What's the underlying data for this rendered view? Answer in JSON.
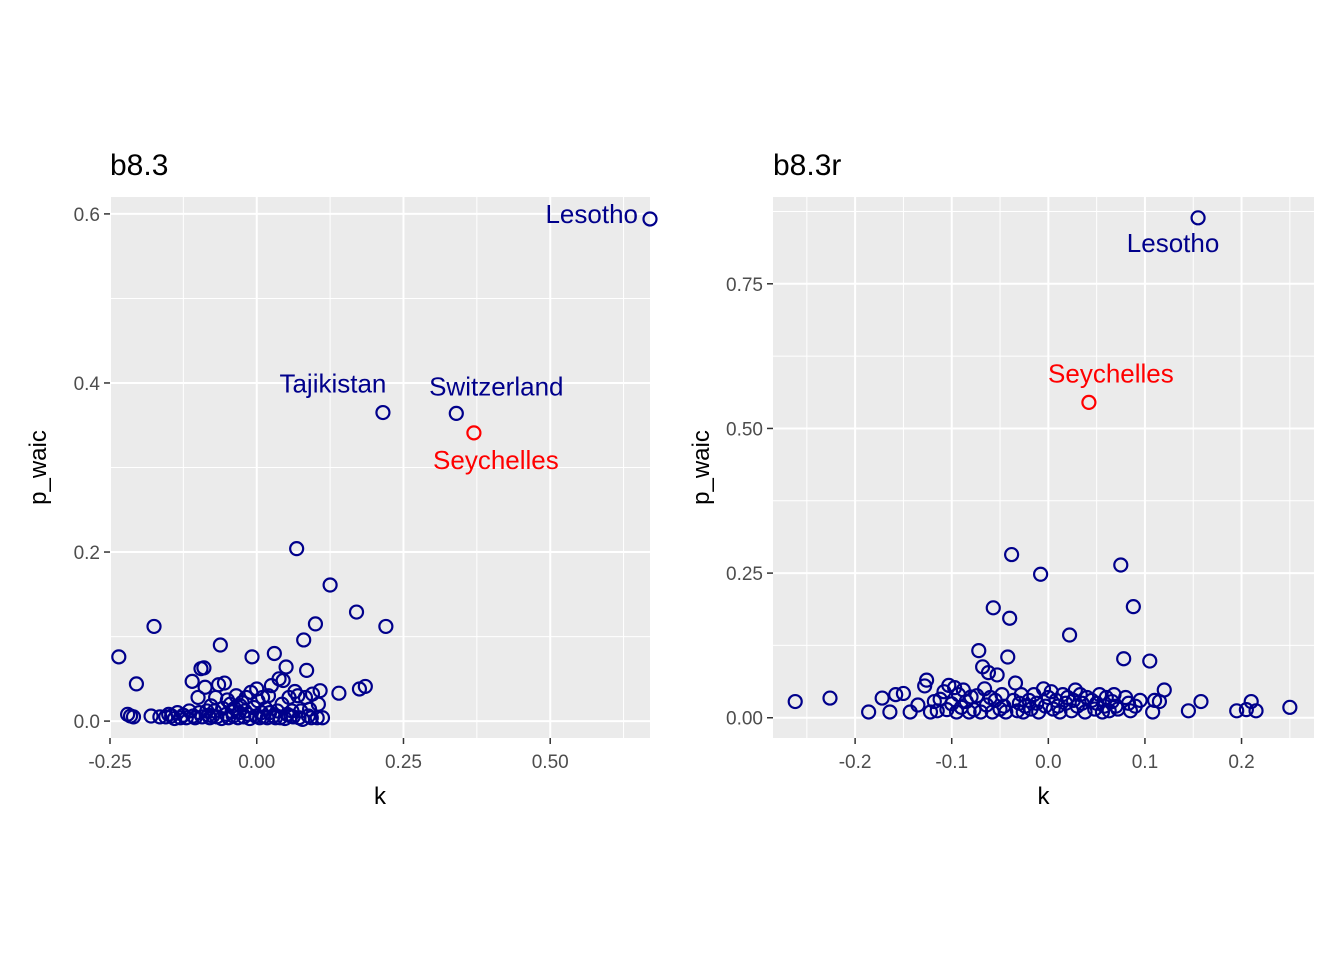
{
  "chart_data": [
    {
      "type": "scatter",
      "title": "b8.3",
      "xlabel": "k",
      "ylabel": "p_waic",
      "xlim": [
        -0.25,
        0.67
      ],
      "ylim": [
        -0.02,
        0.62
      ],
      "xticks": [
        -0.25,
        0.0,
        0.25,
        0.5
      ],
      "xtick_labels": [
        "-0.25",
        "0.00",
        "0.25",
        "0.50"
      ],
      "yticks": [
        0.0,
        0.2,
        0.4,
        0.6
      ],
      "ytick_labels": [
        "0.0",
        "0.2",
        "0.4",
        "0.6"
      ],
      "grid": true,
      "point_color": "#00008B",
      "highlight_color": "#FF0000",
      "points": [
        [
          -0.235,
          0.076
        ],
        [
          -0.22,
          0.008
        ],
        [
          -0.215,
          0.006
        ],
        [
          -0.21,
          0.005
        ],
        [
          -0.205,
          0.044
        ],
        [
          -0.18,
          0.006
        ],
        [
          -0.175,
          0.112
        ],
        [
          -0.165,
          0.005
        ],
        [
          -0.155,
          0.005
        ],
        [
          -0.15,
          0.008
        ],
        [
          -0.145,
          0.006
        ],
        [
          -0.14,
          0.003
        ],
        [
          -0.135,
          0.01
        ],
        [
          -0.13,
          0.004
        ],
        [
          -0.125,
          0.007
        ],
        [
          -0.12,
          0.004
        ],
        [
          -0.115,
          0.012
        ],
        [
          -0.11,
          0.047
        ],
        [
          -0.108,
          0.006
        ],
        [
          -0.105,
          0.004
        ],
        [
          -0.1,
          0.028
        ],
        [
          -0.098,
          0.01
        ],
        [
          -0.095,
          0.062
        ],
        [
          -0.093,
          0.005
        ],
        [
          -0.09,
          0.063
        ],
        [
          -0.088,
          0.04
        ],
        [
          -0.085,
          0.012
        ],
        [
          -0.082,
          0.007
        ],
        [
          -0.08,
          0.004
        ],
        [
          -0.078,
          0.018
        ],
        [
          -0.075,
          0.006
        ],
        [
          -0.072,
          0.012
        ],
        [
          -0.07,
          0.028
        ],
        [
          -0.068,
          0.005
        ],
        [
          -0.065,
          0.043
        ],
        [
          -0.062,
          0.09
        ],
        [
          -0.06,
          0.003
        ],
        [
          -0.058,
          0.015
        ],
        [
          -0.055,
          0.045
        ],
        [
          -0.052,
          0.008
        ],
        [
          -0.05,
          0.025
        ],
        [
          -0.048,
          0.004
        ],
        [
          -0.045,
          0.02
        ],
        [
          -0.042,
          0.011
        ],
        [
          -0.04,
          0.006
        ],
        [
          -0.038,
          0.015
        ],
        [
          -0.035,
          0.03
        ],
        [
          -0.032,
          0.004
        ],
        [
          -0.03,
          0.01
        ],
        [
          -0.028,
          0.018
        ],
        [
          -0.025,
          0.022
        ],
        [
          -0.022,
          0.005
        ],
        [
          -0.02,
          0.012
        ],
        [
          -0.018,
          0.028
        ],
        [
          -0.015,
          0.008
        ],
        [
          -0.012,
          0.003
        ],
        [
          -0.01,
          0.034
        ],
        [
          -0.008,
          0.076
        ],
        [
          -0.005,
          0.016
        ],
        [
          -0.002,
          0.006
        ],
        [
          0.0,
          0.038
        ],
        [
          0.002,
          0.024
        ],
        [
          0.005,
          0.004
        ],
        [
          0.008,
          0.01
        ],
        [
          0.01,
          0.028
        ],
        [
          0.012,
          0.005
        ],
        [
          0.015,
          0.015
        ],
        [
          0.018,
          0.004
        ],
        [
          0.02,
          0.03
        ],
        [
          0.022,
          0.01
        ],
        [
          0.025,
          0.042
        ],
        [
          0.028,
          0.006
        ],
        [
          0.03,
          0.08
        ],
        [
          0.032,
          0.004
        ],
        [
          0.035,
          0.012
        ],
        [
          0.038,
          0.05
        ],
        [
          0.04,
          0.004
        ],
        [
          0.043,
          0.02
        ],
        [
          0.045,
          0.048
        ],
        [
          0.048,
          0.003
        ],
        [
          0.05,
          0.064
        ],
        [
          0.052,
          0.008
        ],
        [
          0.055,
          0.028
        ],
        [
          0.058,
          0.006
        ],
        [
          0.06,
          0.012
        ],
        [
          0.062,
          0.005
        ],
        [
          0.065,
          0.035
        ],
        [
          0.068,
          0.204
        ],
        [
          0.07,
          0.03
        ],
        [
          0.072,
          0.004
        ],
        [
          0.075,
          0.012
        ],
        [
          0.078,
          0.002
        ],
        [
          0.08,
          0.096
        ],
        [
          0.083,
          0.028
        ],
        [
          0.085,
          0.06
        ],
        [
          0.088,
          0.006
        ],
        [
          0.09,
          0.014
        ],
        [
          0.093,
          0.004
        ],
        [
          0.095,
          0.032
        ],
        [
          0.1,
          0.115
        ],
        [
          0.103,
          0.004
        ],
        [
          0.105,
          0.02
        ],
        [
          0.108,
          0.036
        ],
        [
          0.112,
          0.004
        ],
        [
          0.125,
          0.161
        ],
        [
          0.14,
          0.033
        ],
        [
          0.17,
          0.129
        ],
        [
          0.175,
          0.038
        ],
        [
          0.185,
          0.041
        ],
        [
          0.22,
          0.112
        ],
        [
          0.215,
          0.365
        ],
        [
          0.34,
          0.364
        ],
        [
          0.37,
          0.341,
          "h"
        ],
        [
          0.67,
          0.594
        ]
      ],
      "labels": [
        {
          "text": "Lesotho",
          "x": 0.67,
          "y": 0.594,
          "color": "#00008B"
        },
        {
          "text": "Tajikistan",
          "x": 0.215,
          "y": 0.365,
          "color": "#00008B"
        },
        {
          "text": "Switzerland",
          "x": 0.34,
          "y": 0.364,
          "color": "#00008B"
        },
        {
          "text": "Seychelles",
          "x": 0.37,
          "y": 0.341,
          "color": "#FF0000"
        }
      ]
    },
    {
      "type": "scatter",
      "title": "b8.3r",
      "xlabel": "k",
      "ylabel": "p_waic",
      "xlim": [
        -0.285,
        0.275
      ],
      "ylim": [
        -0.035,
        0.9
      ],
      "xticks": [
        -0.2,
        -0.1,
        0.0,
        0.1,
        0.2
      ],
      "xtick_labels": [
        "-0.2",
        "-0.1",
        "0.0",
        "0.1",
        "0.2"
      ],
      "yticks": [
        0.0,
        0.25,
        0.5,
        0.75
      ],
      "ytick_labels": [
        "0.00",
        "0.25",
        "0.50",
        "0.75"
      ],
      "grid": true,
      "point_color": "#00008B",
      "highlight_color": "#FF0000",
      "points": [
        [
          -0.262,
          0.028
        ],
        [
          -0.226,
          0.034
        ],
        [
          -0.186,
          0.01
        ],
        [
          -0.172,
          0.034
        ],
        [
          -0.164,
          0.01
        ],
        [
          -0.158,
          0.04
        ],
        [
          -0.15,
          0.042
        ],
        [
          -0.143,
          0.01
        ],
        [
          -0.135,
          0.022
        ],
        [
          -0.128,
          0.055
        ],
        [
          -0.126,
          0.065
        ],
        [
          -0.122,
          0.01
        ],
        [
          -0.118,
          0.028
        ],
        [
          -0.115,
          0.012
        ],
        [
          -0.112,
          0.032
        ],
        [
          -0.108,
          0.045
        ],
        [
          -0.105,
          0.014
        ],
        [
          -0.103,
          0.056
        ],
        [
          -0.1,
          0.024
        ],
        [
          -0.097,
          0.052
        ],
        [
          -0.095,
          0.01
        ],
        [
          -0.093,
          0.04
        ],
        [
          -0.09,
          0.018
        ],
        [
          -0.088,
          0.048
        ],
        [
          -0.085,
          0.028
        ],
        [
          -0.082,
          0.01
        ],
        [
          -0.08,
          0.036
        ],
        [
          -0.077,
          0.014
        ],
        [
          -0.074,
          0.038
        ],
        [
          -0.072,
          0.116
        ],
        [
          -0.07,
          0.01
        ],
        [
          -0.068,
          0.088
        ],
        [
          -0.066,
          0.05
        ],
        [
          -0.064,
          0.022
        ],
        [
          -0.062,
          0.078
        ],
        [
          -0.06,
          0.035
        ],
        [
          -0.058,
          0.01
        ],
        [
          -0.057,
          0.19
        ],
        [
          -0.055,
          0.03
        ],
        [
          -0.053,
          0.074
        ],
        [
          -0.05,
          0.015
        ],
        [
          -0.048,
          0.04
        ],
        [
          -0.046,
          0.02
        ],
        [
          -0.044,
          0.01
        ],
        [
          -0.042,
          0.105
        ],
        [
          -0.04,
          0.172
        ],
        [
          -0.038,
          0.282
        ],
        [
          -0.036,
          0.03
        ],
        [
          -0.034,
          0.06
        ],
        [
          -0.032,
          0.012
        ],
        [
          -0.03,
          0.025
        ],
        [
          -0.028,
          0.04
        ],
        [
          -0.026,
          0.01
        ],
        [
          -0.024,
          0.02
        ],
        [
          -0.02,
          0.03
        ],
        [
          -0.018,
          0.015
        ],
        [
          -0.015,
          0.04
        ],
        [
          -0.012,
          0.025
        ],
        [
          -0.01,
          0.01
        ],
        [
          -0.008,
          0.248
        ],
        [
          -0.005,
          0.05
        ],
        [
          -0.003,
          0.02
        ],
        [
          0.0,
          0.035
        ],
        [
          0.003,
          0.045
        ],
        [
          0.005,
          0.015
        ],
        [
          0.008,
          0.03
        ],
        [
          0.01,
          0.02
        ],
        [
          0.012,
          0.01
        ],
        [
          0.015,
          0.04
        ],
        [
          0.018,
          0.025
        ],
        [
          0.02,
          0.035
        ],
        [
          0.022,
          0.143
        ],
        [
          0.024,
          0.012
        ],
        [
          0.026,
          0.03
        ],
        [
          0.028,
          0.048
        ],
        [
          0.03,
          0.02
        ],
        [
          0.033,
          0.04
        ],
        [
          0.035,
          0.025
        ],
        [
          0.038,
          0.01
        ],
        [
          0.04,
          0.035
        ],
        [
          0.042,
          0.545,
          "h"
        ],
        [
          0.045,
          0.03
        ],
        [
          0.048,
          0.015
        ],
        [
          0.05,
          0.025
        ],
        [
          0.053,
          0.04
        ],
        [
          0.056,
          0.01
        ],
        [
          0.058,
          0.02
        ],
        [
          0.06,
          0.035
        ],
        [
          0.063,
          0.012
        ],
        [
          0.066,
          0.028
        ],
        [
          0.068,
          0.04
        ],
        [
          0.07,
          0.02
        ],
        [
          0.072,
          0.015
        ],
        [
          0.075,
          0.264
        ],
        [
          0.078,
          0.102
        ],
        [
          0.08,
          0.035
        ],
        [
          0.083,
          0.025
        ],
        [
          0.085,
          0.012
        ],
        [
          0.088,
          0.192
        ],
        [
          0.09,
          0.02
        ],
        [
          0.095,
          0.03
        ],
        [
          0.105,
          0.098
        ],
        [
          0.108,
          0.01
        ],
        [
          0.11,
          0.03
        ],
        [
          0.115,
          0.028
        ],
        [
          0.12,
          0.048
        ],
        [
          0.145,
          0.012
        ],
        [
          0.155,
          0.864
        ],
        [
          0.158,
          0.028
        ],
        [
          0.195,
          0.012
        ],
        [
          0.205,
          0.014
        ],
        [
          0.21,
          0.028
        ],
        [
          0.215,
          0.012
        ],
        [
          0.25,
          0.018
        ]
      ],
      "labels": [
        {
          "text": "Lesotho",
          "x": 0.155,
          "y": 0.864,
          "color": "#00008B"
        },
        {
          "text": "Seychelles",
          "x": 0.042,
          "y": 0.545,
          "color": "#FF0000"
        }
      ]
    }
  ]
}
